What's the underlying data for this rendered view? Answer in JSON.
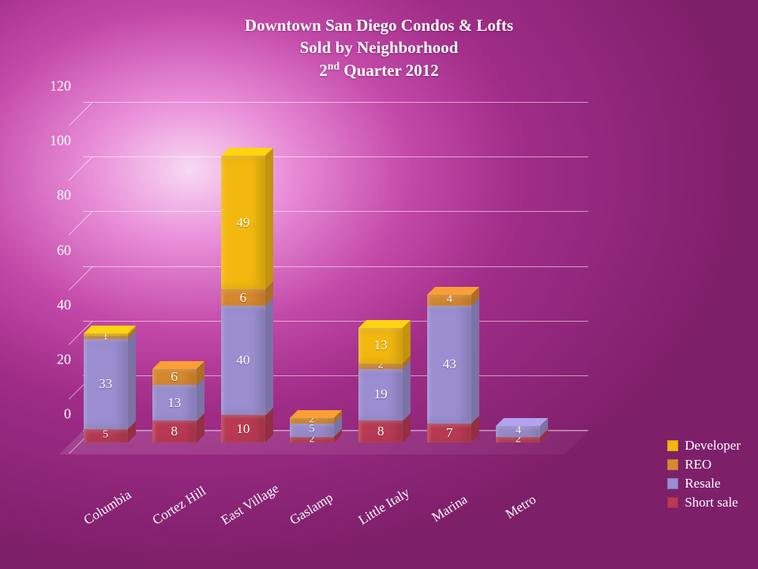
{
  "title": {
    "line1": "Downtown San Diego Condos & Lofts",
    "line2": "Sold by Neighborhood",
    "line3_pre": "2",
    "line3_sup": "nd",
    "line3_post": " Quarter 2012",
    "color": "#ffffff",
    "fontsize": 21
  },
  "chart": {
    "type": "stacked-bar-3d",
    "ylim": [
      0,
      120
    ],
    "ytick_step": 20,
    "yticks": [
      0,
      20,
      40,
      60,
      80,
      100,
      120
    ],
    "grid_color": "rgba(255,255,255,0.55)",
    "axis_label_color": "#ffffff",
    "axis_label_fontsize": 18,
    "xaxis_label_fontsize": 17,
    "xaxis_rotation_deg": -32,
    "categories": [
      "Columbia",
      "Cortez Hill",
      "East Village",
      "Gaslamp",
      "Little Italy",
      "Marina",
      "Metro"
    ],
    "series_order": [
      "Short sale",
      "Resale",
      "REO",
      "Developer"
    ],
    "series_colors": {
      "Short sale": "#b93a52",
      "Resale": "#9a8ed0",
      "REO": "#d98a2e",
      "Developer": "#f2b80f"
    },
    "data": {
      "Columbia": {
        "Short sale": 5,
        "Resale": 33,
        "REO": 1,
        "Developer": 1
      },
      "Cortez Hill": {
        "Short sale": 8,
        "Resale": 13,
        "REO": 6,
        "Developer": 0
      },
      "East Village": {
        "Short sale": 10,
        "Resale": 40,
        "REO": 6,
        "Developer": 49
      },
      "Gaslamp": {
        "Short sale": 2,
        "Resale": 5,
        "REO": 2,
        "Developer": 0
      },
      "Little Italy": {
        "Short sale": 8,
        "Resale": 19,
        "REO": 2,
        "Developer": 13
      },
      "Marina": {
        "Short sale": 7,
        "Resale": 43,
        "REO": 4,
        "Developer": 0
      },
      "Metro": {
        "Short sale": 2,
        "Resale": 4,
        "REO": 0,
        "Developer": 0
      }
    },
    "data_label_color": "#ffffff",
    "data_label_fontsize": 17
  },
  "legend": {
    "position": "bottom-right",
    "items": [
      {
        "label": "Developer",
        "color": "#f2b80f"
      },
      {
        "label": "REO",
        "color": "#d98a2e"
      },
      {
        "label": "Resale",
        "color": "#9a8ed0"
      },
      {
        "label": "Short sale",
        "color": "#b93a52"
      }
    ],
    "fontsize": 17,
    "text_color": "#ffffff"
  },
  "background": {
    "type": "radial-gradient-magenta",
    "center": "25% 30%",
    "stops": [
      "#f8d9f3",
      "#e98ed8",
      "#c349a8",
      "#a02d88",
      "#7e1f6a"
    ]
  }
}
